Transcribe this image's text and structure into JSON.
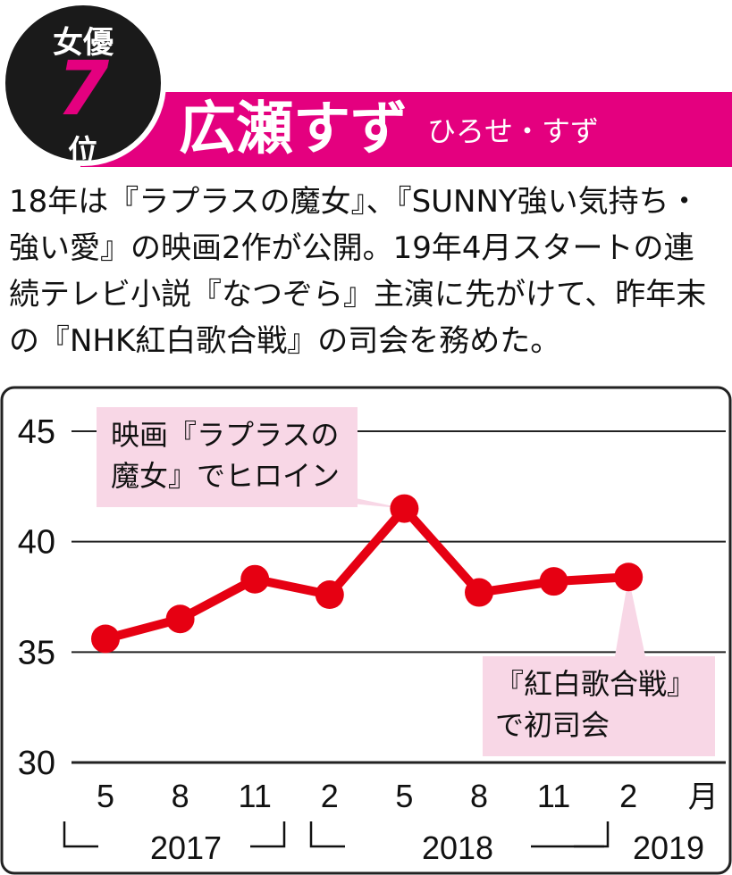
{
  "header": {
    "badge_category": "女優",
    "badge_rank": "7",
    "badge_rank_suffix": "位",
    "name": "広瀬すず",
    "reading": "ひろせ・すず",
    "accent_color": "#e4007f",
    "badge_color": "#1a1a1a"
  },
  "description": "18年は『ラプラスの魔女』、『SUNNY強い気持ち・強い愛』の映画2作が公開。19年4月スタートの連続テレビ小説『なつぞら』主演に先がけて、昨年末の『NHK紅白歌合戦』の司会を務めた。",
  "chart_data": {
    "type": "line",
    "title": "",
    "xlabel": "",
    "ylabel": "",
    "ylim": [
      30,
      45
    ],
    "yticks": [
      "45",
      "40",
      "35",
      "30"
    ],
    "categories": [
      "5",
      "8",
      "11",
      "2",
      "5",
      "8",
      "11",
      "2"
    ],
    "x_unit": "月",
    "year_groups": [
      {
        "label": "2017",
        "start_index": 0,
        "end_index": 2
      },
      {
        "label": "2018",
        "start_index": 3,
        "end_index": 6
      },
      {
        "label": "2019",
        "start_index": 7,
        "end_index": 7
      }
    ],
    "series": [
      {
        "values": [
          35.6,
          36.5,
          38.3,
          37.6,
          41.5,
          37.7,
          38.2,
          38.4
        ],
        "color": "#e60012"
      }
    ],
    "annotations": [
      {
        "index": 4,
        "lines": [
          "映画『ラプラスの",
          "魔女』でヒロイン"
        ]
      },
      {
        "index": 7,
        "lines": [
          "『紅白歌合戦』",
          "で初司会"
        ]
      }
    ],
    "grid": true,
    "annotation_box_color": "#f8d7e6"
  }
}
